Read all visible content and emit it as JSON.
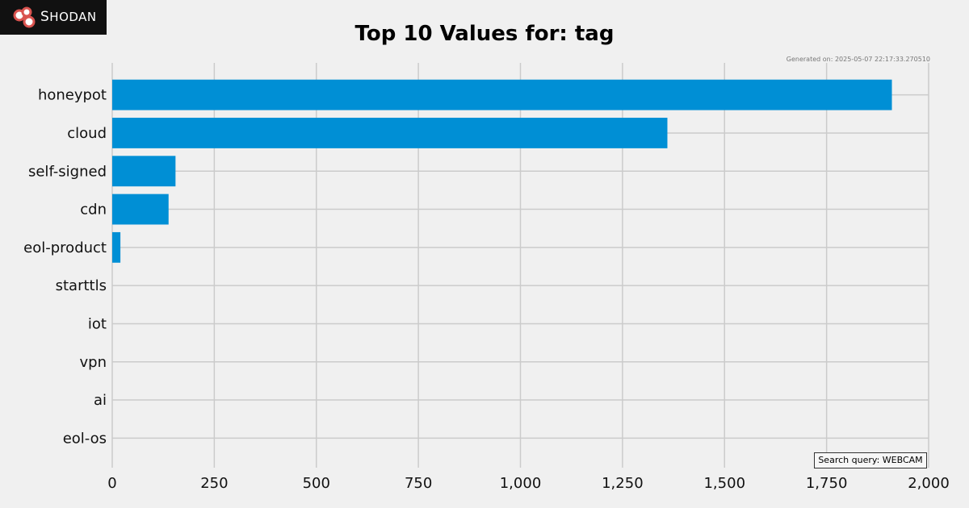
{
  "brand": {
    "name": "Shodan",
    "colors": {
      "logo_bg": "#111111",
      "logo_ring": "#d9534f"
    }
  },
  "generated_text": "Generated on: 2025-05-07 22:17:33.270510",
  "search_query_text": "Search query: WEBCAM",
  "colors": {
    "bar": "#008fd5",
    "grid": "#cbcbcb",
    "background": "#f0f0f0"
  },
  "chart_data": {
    "type": "bar",
    "orientation": "horizontal",
    "title": "Top 10 Values for: tag",
    "xlabel": "",
    "ylabel": "",
    "categories": [
      "honeypot",
      "cloud",
      "self-signed",
      "cdn",
      "eol-product",
      "starttls",
      "iot",
      "vpn",
      "ai",
      "eol-os"
    ],
    "values": [
      1910,
      1360,
      155,
      138,
      20,
      0,
      0,
      0,
      0,
      0
    ],
    "xlim": [
      0,
      2000
    ],
    "xticks": [
      0,
      250,
      500,
      750,
      1000,
      1250,
      1500,
      1750,
      2000
    ],
    "xtick_labels": [
      "0",
      "250",
      "500",
      "750",
      "1,000",
      "1,250",
      "1,500",
      "1,750",
      "2,000"
    ],
    "grid": true,
    "legend": "none"
  }
}
